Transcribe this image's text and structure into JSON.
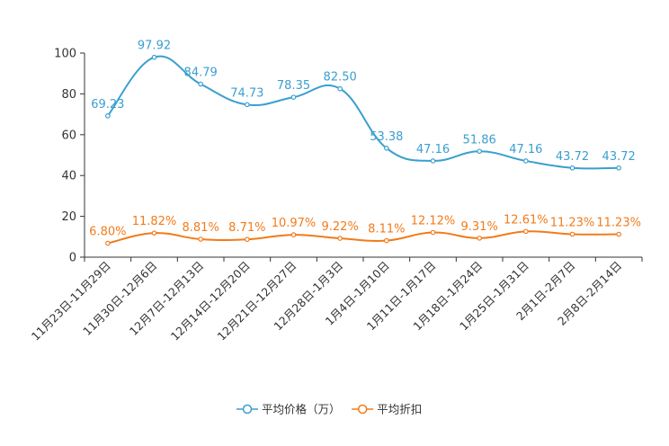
{
  "chart_data": {
    "type": "line",
    "title": "",
    "xlabel": "",
    "ylabel": "",
    "ylim": [
      0,
      100
    ],
    "yticks": [
      0,
      20,
      40,
      60,
      80,
      100
    ],
    "categories": [
      "11月23日-11月29日",
      "11月30日-12月6日",
      "12月7日-12月13日",
      "12月14日-12月20日",
      "12月21日-12月27日",
      "12月28日-1月3日",
      "1月4日-1月10日",
      "1月11日-1月17日",
      "1月18日-1月24日",
      "1月25日-1月31日",
      "2月1日-2月7日",
      "2月8日-2月14日"
    ],
    "series": [
      {
        "name": "平均价格（万）",
        "color": "#3a9fcf",
        "values": [
          69.23,
          97.92,
          84.79,
          74.73,
          78.35,
          82.5,
          53.38,
          47.16,
          51.86,
          47.16,
          43.72,
          43.72
        ],
        "labels": [
          "69.23",
          "97.92",
          "84.79",
          "74.73",
          "78.35",
          "82.50",
          "53.38",
          "47.16",
          "51.86",
          "47.16",
          "43.72",
          "43.72"
        ]
      },
      {
        "name": "平均折扣",
        "color": "#f27b1a",
        "values": [
          6.8,
          11.82,
          8.81,
          8.71,
          10.97,
          9.22,
          8.11,
          12.12,
          9.31,
          12.61,
          11.23,
          11.23
        ],
        "labels": [
          "6.80%",
          "11.82%",
          "8.81%",
          "8.71%",
          "10.97%",
          "9.22%",
          "8.11%",
          "12.12%",
          "9.31%",
          "12.61%",
          "11.23%",
          "11.23%"
        ]
      }
    ],
    "grid": false,
    "legend_position": "bottom-center"
  }
}
